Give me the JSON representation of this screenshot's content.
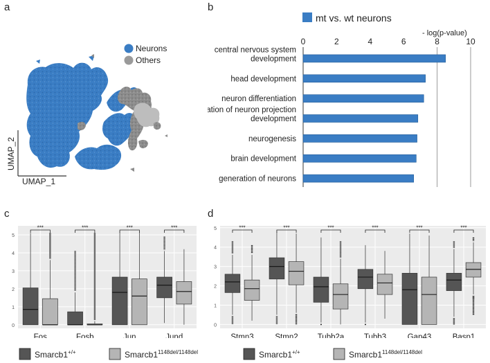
{
  "panels": {
    "a": "a",
    "b": "b",
    "c": "c",
    "d": "d"
  },
  "colors": {
    "neurons": "#3a7dc4",
    "others": "#9a9a9a",
    "others_light": "#bdbdbd",
    "bar": "#3a7dc4",
    "wt_box": "#555555",
    "mt_box": "#b5b5b5",
    "panel_bg": "#ebebeb"
  },
  "umap": {
    "xlabel": "UMAP_1",
    "ylabel": "UMAP_2",
    "legend": [
      {
        "label": "Neurons",
        "color": "#3a7dc4"
      },
      {
        "label": "Others",
        "color": "#9a9a9a"
      }
    ]
  },
  "chart_data": [
    {
      "type": "bar",
      "orientation": "horizontal",
      "legend": "mt vs. wt neurons",
      "axis_title": "- log(p-value)",
      "xlim": [
        0,
        10
      ],
      "ticks": [
        "0",
        "2",
        "4",
        "6",
        "8",
        "10"
      ],
      "gridlines": [
        8,
        10
      ],
      "categories": [
        [
          "central nervous system",
          "development"
        ],
        [
          "head development"
        ],
        [
          "neuron differentiation"
        ],
        [
          "regulation of neuron projection",
          "development"
        ],
        [
          "neurogenesis"
        ],
        [
          "brain development"
        ],
        [
          "generation of neurons"
        ]
      ],
      "values": [
        8.5,
        7.3,
        7.2,
        6.85,
        6.8,
        6.75,
        6.6
      ]
    },
    {
      "type": "box",
      "ylim": [
        -0.2,
        5.5
      ],
      "yticks": [
        "0",
        "1",
        "2",
        "3",
        "4",
        "5"
      ],
      "categories": [
        "Fos",
        "Fosb",
        "Jun",
        "Jund"
      ],
      "significance": [
        "***",
        "***",
        "***",
        "***"
      ],
      "series": [
        {
          "name": "Smarcb1+/+",
          "label_main": "Smarcb1",
          "label_sup": "+/+",
          "boxes": [
            {
              "q1": 0,
              "median": 0.85,
              "q3": 2.05,
              "low": 0,
              "high": 5.1,
              "out_hi": [],
              "out_lo": []
            },
            {
              "q1": 0,
              "median": 0,
              "q3": 0.72,
              "low": 0,
              "high": 1.8,
              "out_hi": [
                4.1
              ],
              "out_lo": []
            },
            {
              "q1": 0,
              "median": 1.8,
              "q3": 2.65,
              "low": 0,
              "high": 5.2,
              "out_hi": [],
              "out_lo": []
            },
            {
              "q1": 1.5,
              "median": 2.2,
              "q3": 2.65,
              "low": 0.1,
              "high": 4.1,
              "out_hi": [
                4.9
              ],
              "out_lo": []
            }
          ]
        },
        {
          "name": "Smarcb1 1148del/1148del",
          "label_main": "Smarcb1",
          "label_sup": "1148del/1148del",
          "boxes": [
            {
              "q1": 0,
              "median": 0,
              "q3": 1.45,
              "low": 0,
              "high": 3.6,
              "out_hi": [
                5.1
              ],
              "out_lo": []
            },
            {
              "q1": 0,
              "median": 0,
              "q3": 0.05,
              "low": 0,
              "high": 0.2,
              "out_hi": [
                5.1
              ],
              "out_lo": []
            },
            {
              "q1": 0,
              "median": 1.6,
              "q3": 2.55,
              "low": 0,
              "high": 5.2,
              "out_hi": [],
              "out_lo": []
            },
            {
              "q1": 1.15,
              "median": 1.85,
              "q3": 2.4,
              "low": 0,
              "high": 4.2,
              "out_hi": [],
              "out_lo": []
            }
          ]
        }
      ]
    },
    {
      "type": "box",
      "ylim": [
        -0.2,
        5.1
      ],
      "yticks": [
        "0",
        "1",
        "2",
        "3",
        "4",
        "5"
      ],
      "categories": [
        "Stmn3",
        "Stmn2",
        "Tubb2a",
        "Tubb3",
        "Gap43",
        "Basp1"
      ],
      "significance": [
        "***",
        "***",
        "***",
        "***",
        "***",
        "***"
      ],
      "series": [
        {
          "name": "Smarcb1+/+",
          "label_main": "Smarcb1",
          "label_sup": "+/+",
          "boxes": [
            {
              "q1": 1.65,
              "median": 2.2,
              "q3": 2.6,
              "low": 0.5,
              "high": 3.6,
              "out_hi": [
                4.3
              ],
              "out_lo": [
                0
              ]
            },
            {
              "q1": 2.35,
              "median": 3.0,
              "q3": 3.45,
              "low": 0.5,
              "high": 4.8,
              "out_hi": [],
              "out_lo": [
                0
              ]
            },
            {
              "q1": 1.15,
              "median": 1.95,
              "q3": 2.45,
              "low": 0.1,
              "high": 4.5,
              "out_hi": [],
              "out_lo": [
                0
              ]
            },
            {
              "q1": 1.85,
              "median": 2.45,
              "q3": 2.85,
              "low": 0.1,
              "high": 4.1,
              "out_hi": [],
              "out_lo": [
                0
              ]
            },
            {
              "q1": 0,
              "median": 1.8,
              "q3": 2.65,
              "low": 0,
              "high": 4.7,
              "out_hi": [],
              "out_lo": []
            },
            {
              "q1": 1.75,
              "median": 2.3,
              "q3": 2.65,
              "low": 0.4,
              "high": 3.9,
              "out_hi": [
                4.3
              ],
              "out_lo": [
                0
              ]
            }
          ]
        },
        {
          "name": "Smarcb1 1148del/1148del",
          "label_main": "Smarcb1",
          "label_sup": "1148del/1148del",
          "boxes": [
            {
              "q1": 1.25,
              "median": 1.85,
              "q3": 2.3,
              "low": 0.2,
              "high": 3.6,
              "out_hi": [
                4.1
              ],
              "out_lo": []
            },
            {
              "q1": 2.05,
              "median": 2.75,
              "q3": 3.25,
              "low": 0.6,
              "high": 4.7,
              "out_hi": [],
              "out_lo": [
                0
              ]
            },
            {
              "q1": 0.8,
              "median": 1.55,
              "q3": 2.1,
              "low": 0,
              "high": 3.4,
              "out_hi": [
                4.3
              ],
              "out_lo": []
            },
            {
              "q1": 1.55,
              "median": 2.15,
              "q3": 2.6,
              "low": 0.3,
              "high": 3.8,
              "out_hi": [],
              "out_lo": []
            },
            {
              "q1": 0,
              "median": 1.55,
              "q3": 2.45,
              "low": 0,
              "high": 4.6,
              "out_hi": [],
              "out_lo": []
            },
            {
              "q1": 2.45,
              "median": 2.85,
              "q3": 3.2,
              "low": 1.55,
              "high": 4.25,
              "out_hi": [
                4.5
              ],
              "out_lo": [
                1.3,
                0.5
              ]
            }
          ]
        }
      ]
    }
  ]
}
